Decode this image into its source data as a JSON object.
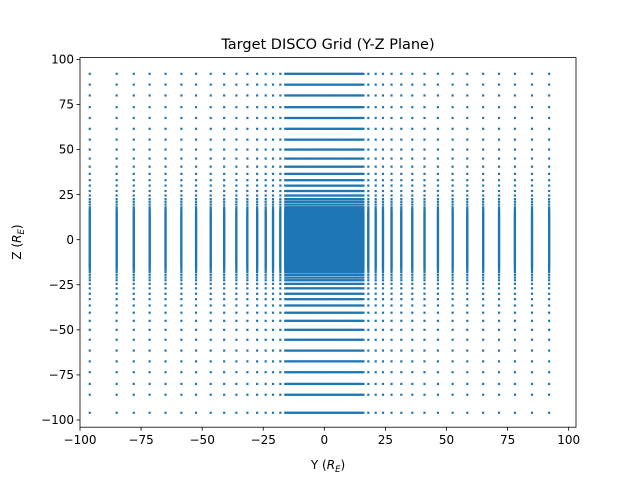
{
  "chart_data": {
    "type": "scatter",
    "title": "Target DISCO Grid (Y-Z Plane)",
    "xlabel": "Y",
    "xlabel_sub": "E",
    "ylabel": "Z",
    "ylabel_sub": "E",
    "xlim": [
      -100,
      103
    ],
    "ylim": [
      -104,
      101
    ],
    "xticks": [
      -100,
      -75,
      -50,
      -25,
      0,
      25,
      50,
      75,
      100
    ],
    "yticks": [
      -100,
      -75,
      -50,
      -25,
      0,
      25,
      50,
      75,
      100
    ],
    "grid": false,
    "marker_color": "#1f77b4",
    "grid_spec": {
      "uniform_core": {
        "min": -16,
        "max": 16,
        "step": 0.5
      },
      "outer_positive": [
        16,
        17,
        18,
        19.5,
        21,
        22.5,
        24.5,
        27,
        30,
        33,
        36.5,
        40.5,
        45,
        50,
        55.5,
        61.5,
        67.5,
        73.5,
        80,
        86,
        92
      ],
      "x_outer_positive": [
        16,
        18,
        21,
        24,
        27.5,
        31.5,
        36,
        41,
        46.5,
        52.5,
        58.5,
        65,
        71.5,
        78,
        85,
        92
      ],
      "min_abs_outer_z": 92,
      "min_abs_outer_z_neg": 96,
      "min_abs_outer_y_neg": 96
    }
  }
}
